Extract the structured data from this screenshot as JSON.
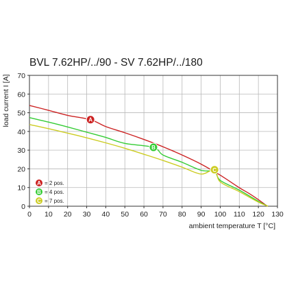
{
  "chart_data": {
    "type": "line",
    "title": "BVL 7.62HP/../90 - SV 7.62HP/../180",
    "xlabel": "ambient temperature T [°C]",
    "ylabel": "load current I [A]",
    "xlim": [
      0,
      130
    ],
    "ylim": [
      0,
      70
    ],
    "x_ticks": [
      "0",
      "10",
      "20",
      "30",
      "40",
      "50",
      "60",
      "70",
      "80",
      "90",
      "100",
      "110",
      "120",
      "130"
    ],
    "y_ticks": [
      "0",
      "10",
      "20",
      "30",
      "40",
      "50",
      "60",
      "70"
    ],
    "grid": true,
    "legend_position": "bottom-left",
    "series": [
      {
        "name": "A = 2 pos.",
        "marker": "A",
        "color": "#cc2222",
        "points": [
          [
            0,
            53.9
          ],
          [
            10,
            51.3
          ],
          [
            20,
            48.6
          ],
          [
            32,
            46.3
          ],
          [
            40,
            42.6
          ],
          [
            50,
            39.3
          ],
          [
            60,
            35.7
          ],
          [
            70,
            31.8
          ],
          [
            80,
            27.4
          ],
          [
            90,
            22.5
          ],
          [
            100,
            16.6
          ],
          [
            110,
            9.9
          ],
          [
            115,
            6.9
          ],
          [
            120,
            3.5
          ],
          [
            124,
            0.5
          ],
          [
            125,
            0
          ]
        ],
        "marker_at": [
          32,
          46.3
        ]
      },
      {
        "name": "B = 4 pos.",
        "marker": "B",
        "color": "#33cc33",
        "points": [
          [
            0,
            47.4
          ],
          [
            10,
            45.0
          ],
          [
            20,
            42.4
          ],
          [
            30,
            39.6
          ],
          [
            40,
            36.8
          ],
          [
            50,
            33.6
          ],
          [
            65,
            31.5
          ],
          [
            70,
            27.4
          ],
          [
            80,
            23.5
          ],
          [
            90,
            19.2
          ],
          [
            97,
            18.5
          ],
          [
            100,
            13.8
          ],
          [
            110,
            8.6
          ],
          [
            120,
            2.6
          ],
          [
            125,
            0
          ]
        ],
        "marker_at": [
          65,
          31.5
        ]
      },
      {
        "name": "C = 7 pos.",
        "marker": "C",
        "color": "#cccc22",
        "points": [
          [
            0,
            43.7
          ],
          [
            10,
            41.5
          ],
          [
            20,
            39.1
          ],
          [
            30,
            36.6
          ],
          [
            40,
            33.9
          ],
          [
            50,
            31.0
          ],
          [
            60,
            27.8
          ],
          [
            70,
            24.5
          ],
          [
            80,
            20.9
          ],
          [
            90,
            17.2
          ],
          [
            97,
            19.5
          ],
          [
            100,
            13.0
          ],
          [
            110,
            7.8
          ],
          [
            120,
            2.2
          ],
          [
            125,
            0
          ]
        ],
        "marker_at": [
          97,
          19.5
        ]
      }
    ]
  }
}
